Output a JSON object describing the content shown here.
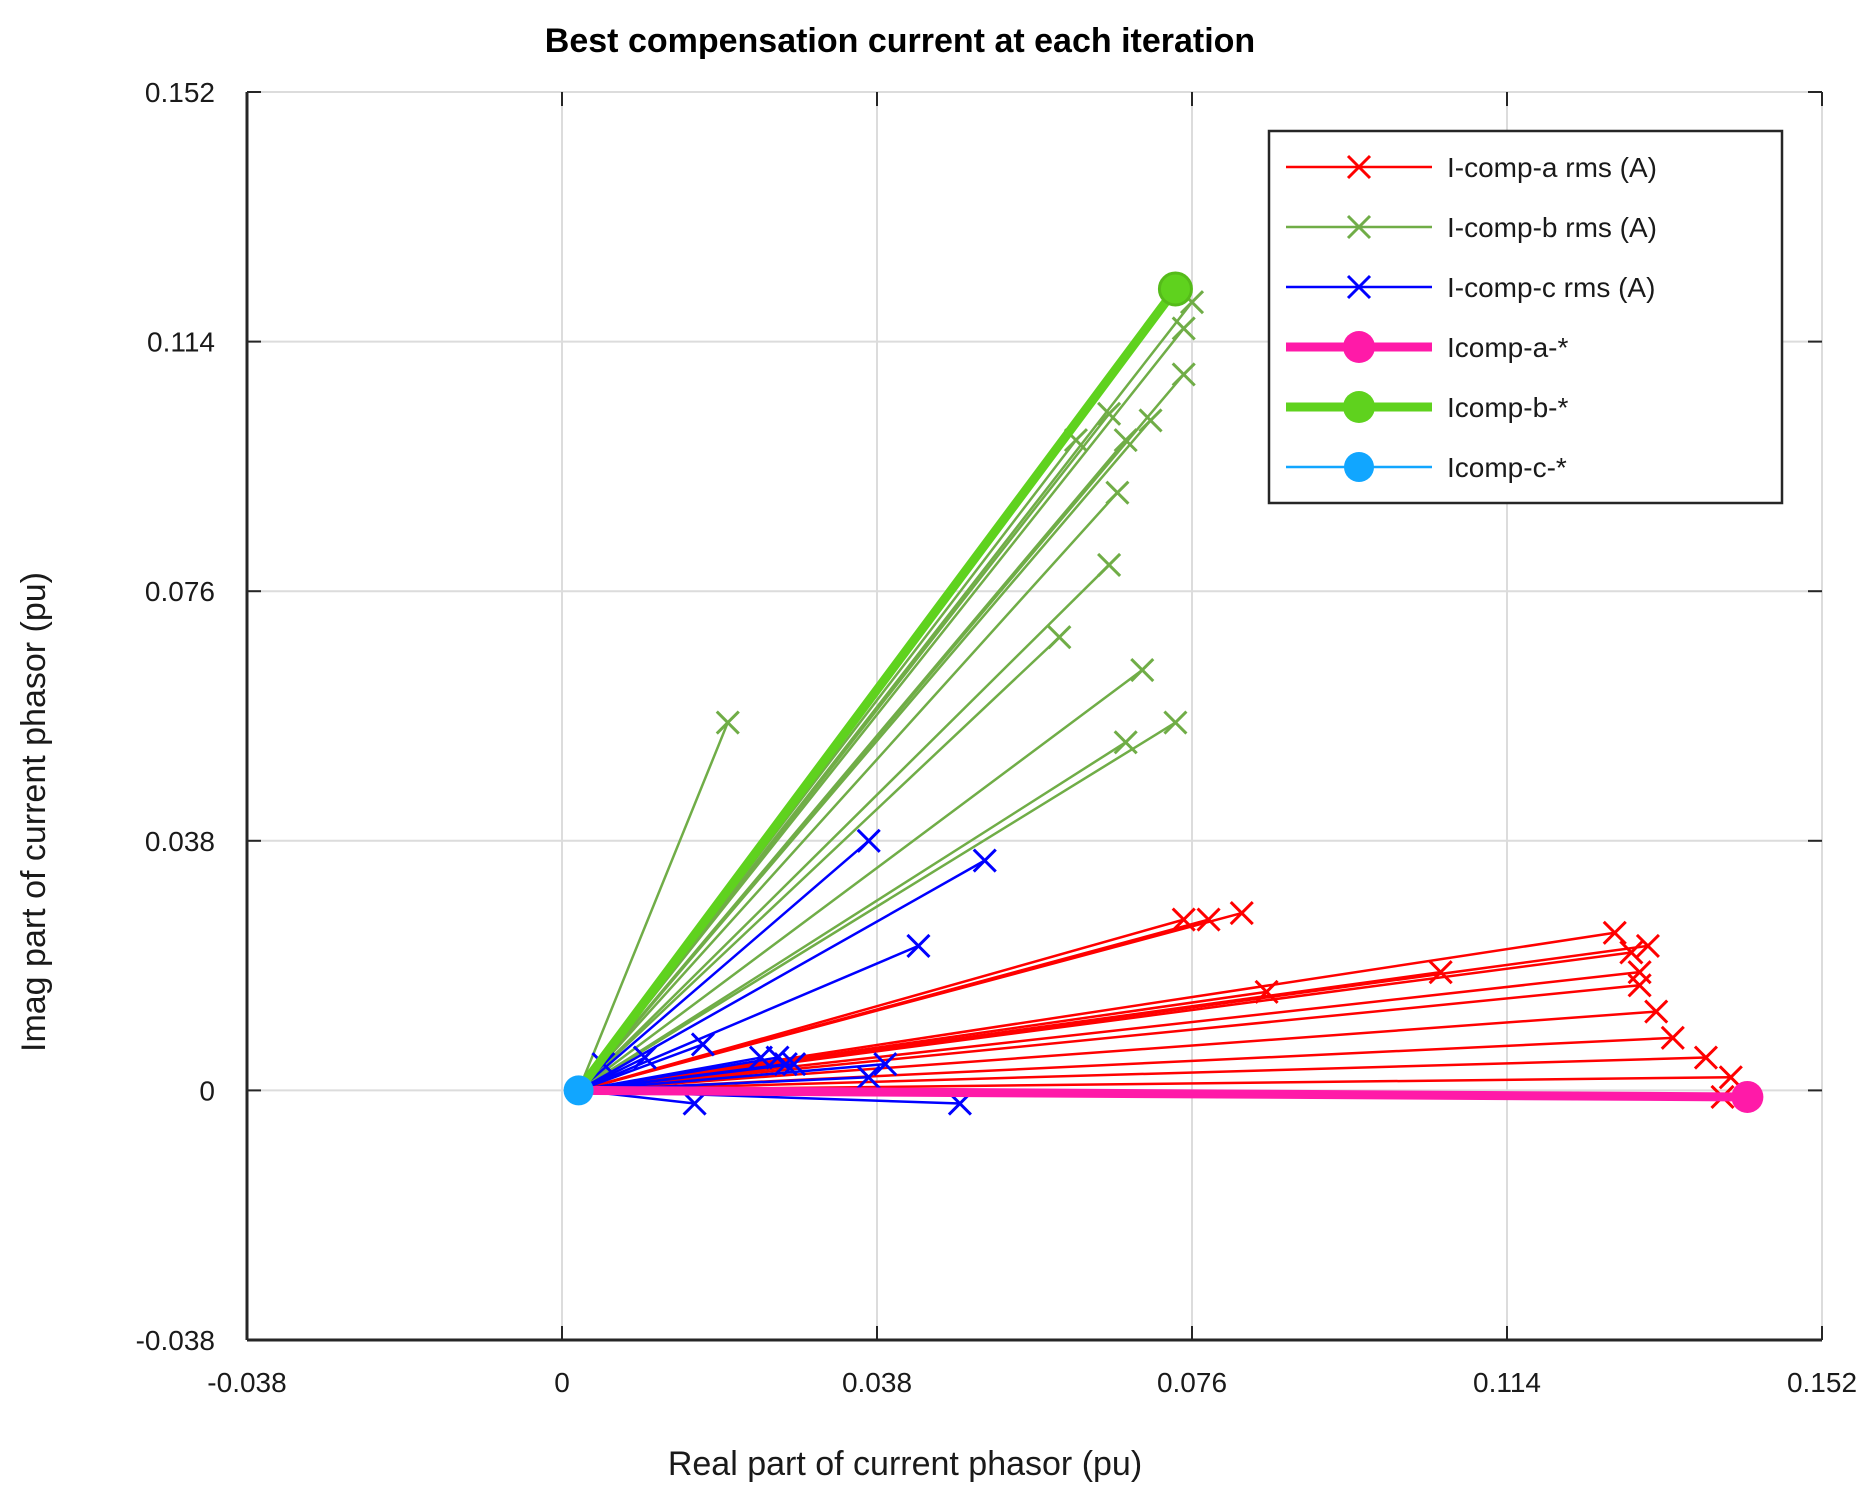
{
  "chart_data": {
    "type": "line",
    "title": "Best compensation current at each iteration",
    "xlabel": "Real part of current phasor (pu)",
    "ylabel": "Imag part of current phasor (pu)",
    "xlim": [
      -0.038,
      0.152
    ],
    "ylim": [
      -0.038,
      0.152
    ],
    "xticks": [
      -0.038,
      0,
      0.038,
      0.076,
      0.114,
      0.152
    ],
    "yticks": [
      -0.038,
      0,
      0.038,
      0.076,
      0.114,
      0.152
    ],
    "xtick_labels": [
      "-0.038",
      "0",
      "0.038",
      "0.076",
      "0.114",
      "0.152"
    ],
    "ytick_labels": [
      "-0.038",
      "0",
      "0.038",
      "0.076",
      "0.114",
      "0.152"
    ],
    "grid": true,
    "legend_position": "top-right",
    "origin": [
      0.002,
      0.0
    ],
    "series": [
      {
        "name": "I-comp-a rms (A)",
        "color": "#ff0000",
        "marker": "x",
        "points": [
          [
            0.075,
            0.026
          ],
          [
            0.078,
            0.026
          ],
          [
            0.082,
            0.027
          ],
          [
            0.085,
            0.015
          ],
          [
            0.106,
            0.018
          ],
          [
            0.127,
            0.024
          ],
          [
            0.129,
            0.021
          ],
          [
            0.13,
            0.018
          ],
          [
            0.131,
            0.022
          ],
          [
            0.13,
            0.016
          ],
          [
            0.132,
            0.012
          ],
          [
            0.134,
            0.008
          ],
          [
            0.138,
            0.005
          ],
          [
            0.141,
            0.002
          ],
          [
            0.14,
            -0.001
          ]
        ]
      },
      {
        "name": "I-comp-b rms (A)",
        "color": "#70ad47",
        "marker": "x",
        "points": [
          [
            0.02,
            0.056
          ],
          [
            0.074,
            0.056
          ],
          [
            0.068,
            0.053
          ],
          [
            0.07,
            0.064
          ],
          [
            0.06,
            0.069
          ],
          [
            0.066,
            0.08
          ],
          [
            0.067,
            0.091
          ],
          [
            0.068,
            0.099
          ],
          [
            0.062,
            0.099
          ],
          [
            0.066,
            0.103
          ],
          [
            0.071,
            0.102
          ],
          [
            0.075,
            0.109
          ],
          [
            0.075,
            0.116
          ],
          [
            0.076,
            0.12
          ],
          [
            0.074,
            0.122
          ]
        ]
      },
      {
        "name": "I-comp-c rms (A)",
        "color": "#0000ff",
        "marker": "x",
        "points": [
          [
            0.037,
            0.038
          ],
          [
            0.051,
            0.035
          ],
          [
            0.043,
            0.022
          ],
          [
            0.017,
            0.007
          ],
          [
            0.01,
            0.005
          ],
          [
            0.005,
            0.004
          ],
          [
            0.024,
            0.005
          ],
          [
            0.026,
            0.005
          ],
          [
            0.027,
            0.004
          ],
          [
            0.028,
            0.004
          ],
          [
            0.037,
            0.002
          ],
          [
            0.039,
            0.004
          ],
          [
            0.016,
            -0.002
          ],
          [
            0.048,
            -0.002
          ]
        ]
      },
      {
        "name": "Icomp-a-*",
        "color": "#ff1aa8",
        "end": [
          0.143,
          -0.001
        ],
        "style": "thick-circle"
      },
      {
        "name": "Icomp-b-*",
        "color": "#5fd21e",
        "end": [
          0.074,
          0.122
        ],
        "style": "thick-circle"
      },
      {
        "name": "Icomp-c-*",
        "color": "#11a6ff",
        "end": [
          0.002,
          0.0
        ],
        "style": "circle"
      }
    ]
  }
}
